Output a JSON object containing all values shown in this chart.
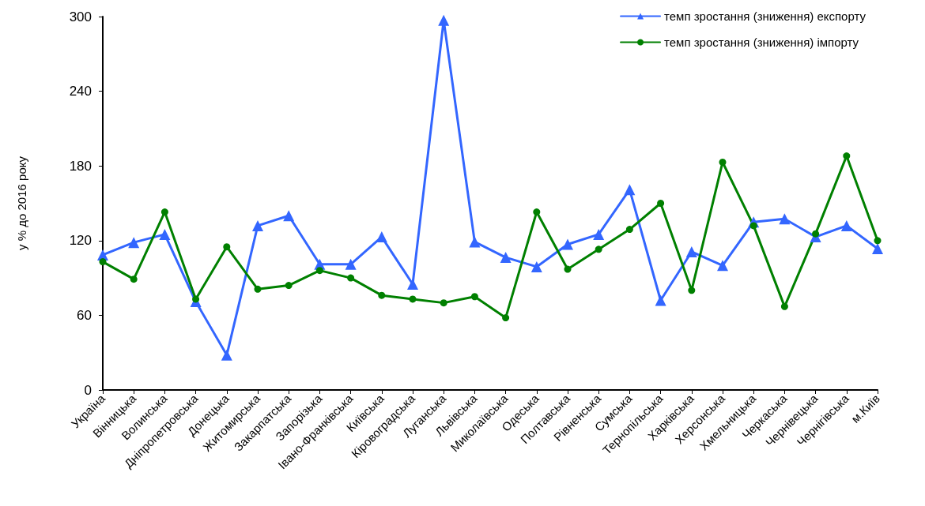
{
  "chart_data": {
    "type": "line",
    "ylabel": "у % до 2016 року",
    "categories": [
      "Україна",
      "Вінницька",
      "Волинська",
      "Дніпропетровська",
      "Донецька",
      "Житомирська",
      "Закарпатська",
      "Запорізька",
      "Івано-Франківська",
      "Київська",
      "Кіровоградська",
      "Луганська",
      "Львівська",
      "Миколаївська",
      "Одеська",
      "Полтавська",
      "Рівненська",
      "Сумська",
      "Тернопільська",
      "Харківська",
      "Херсонська",
      "Хмельницька",
      "Черкаська",
      "Чернівецька",
      "Чернігівська",
      "м.Київ"
    ],
    "series": [
      {
        "name": "темп зростання (зниження) експорту",
        "color": "#3366ff",
        "marker": "triangle",
        "values": [
          108.5,
          118.5,
          125,
          71,
          28,
          132,
          140,
          101,
          101,
          123,
          85,
          297,
          119,
          106.5,
          99,
          117,
          125,
          161,
          72,
          111,
          100,
          135,
          137.5,
          123,
          132,
          113.5
        ]
      },
      {
        "name": "темп зростання (зниження) імпорту",
        "color": "#008000",
        "marker": "circle",
        "values": [
          103,
          89,
          143,
          73,
          115,
          81,
          84,
          96,
          90,
          76,
          73,
          70,
          75,
          58,
          143,
          97,
          113,
          129,
          150,
          80,
          183,
          132,
          67,
          125.5,
          188,
          120
        ]
      }
    ],
    "ylim": [
      0,
      300
    ],
    "yticks": [
      0,
      60,
      120,
      180,
      240,
      300
    ],
    "grid": false,
    "legend": "top right",
    "line_style": "solid"
  }
}
